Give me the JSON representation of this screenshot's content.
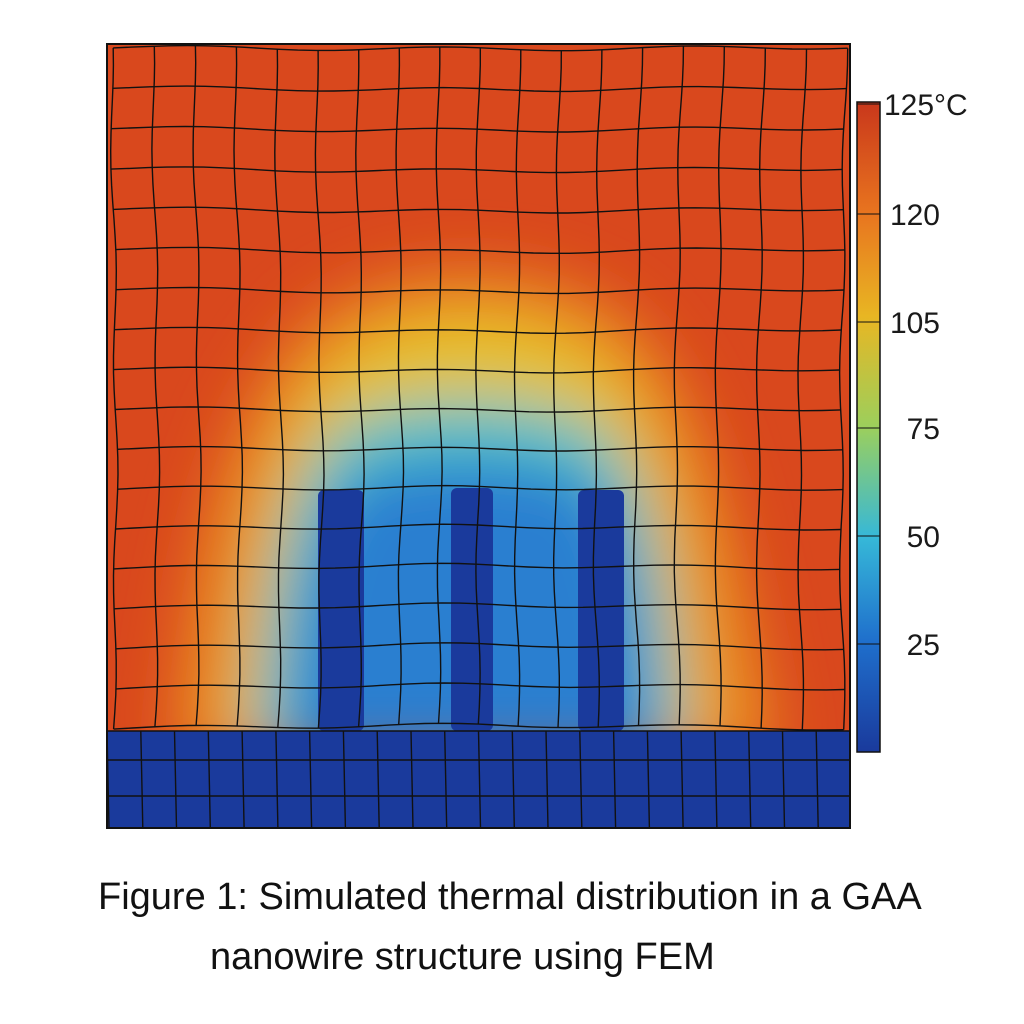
{
  "figure": {
    "caption_line1": "Figure 1: Simulated thermal distribution in a GAA",
    "caption_line2": "nanowire structure using FEM"
  },
  "colorbar": {
    "ticks": [
      {
        "value": 125,
        "label": "125°C"
      },
      {
        "value": 120,
        "label": "120"
      },
      {
        "value": 105,
        "label": "105"
      },
      {
        "value": 75,
        "label": "75"
      },
      {
        "value": 50,
        "label": "50"
      },
      {
        "value": 25,
        "label": "25"
      }
    ],
    "colors": [
      "#1a3a9c",
      "#1f6fcc",
      "#36b8d8",
      "#9ccf5c",
      "#e8b623",
      "#e8741f",
      "#c9371b"
    ]
  },
  "colors": {
    "hot": "#d9481d",
    "warm": "#e98a24",
    "mid": "#e6c12a",
    "cool": "#49c2cf",
    "cold": "#1f58c0",
    "substrate": "#1a3a9c",
    "mesh": "#111111"
  }
}
